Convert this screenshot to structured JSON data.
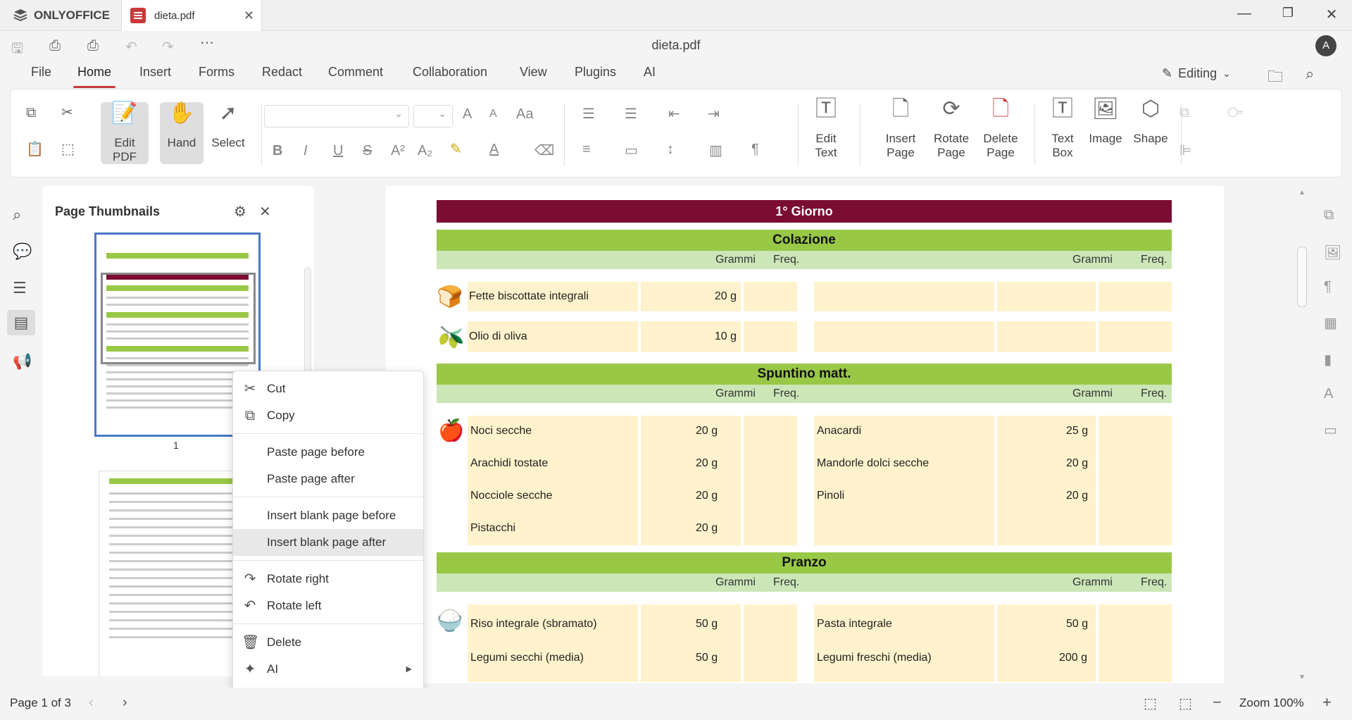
{
  "app": {
    "name": "ONLYOFFICE",
    "tab_label": "dieta.pdf",
    "doc_title": "dieta.pdf",
    "avatar_initial": "A"
  },
  "menu": {
    "tabs": [
      "File",
      "Home",
      "Insert",
      "Forms",
      "Redact",
      "Comment",
      "Collaboration",
      "View",
      "Plugins",
      "AI"
    ],
    "active": "Home",
    "mode_label": "Editing"
  },
  "toolbar": {
    "edit_pdf": [
      "Edit",
      "PDF"
    ],
    "hand": "Hand",
    "select": "Select",
    "edit_text": [
      "Edit",
      "Text"
    ],
    "insert_page": [
      "Insert",
      "Page"
    ],
    "rotate_page": [
      "Rotate",
      "Page"
    ],
    "delete_page": [
      "Delete",
      "Page"
    ],
    "text_box": [
      "Text",
      "Box"
    ],
    "image": "Image",
    "shape": "Shape"
  },
  "thumbnails": {
    "title": "Page Thumbnails",
    "page1_label": "1"
  },
  "document": {
    "day_title": "1° Giorno",
    "col_grams": "Grammi",
    "col_freq": "Freq.",
    "meals": [
      {
        "name": "Colazione",
        "rows": [
          {
            "left_food": "Fette biscottate integrali",
            "left_g": "20 g",
            "right_food": "",
            "right_g": ""
          },
          {
            "left_food": "Olio di oliva",
            "left_g": "10 g",
            "right_food": "",
            "right_g": ""
          }
        ]
      },
      {
        "name": "Spuntino matt.",
        "rows": [
          {
            "left_food": "Noci secche",
            "left_g": "20 g",
            "right_food": "Anacardi",
            "right_g": "25 g"
          },
          {
            "left_food": "Arachidi tostate",
            "left_g": "20 g",
            "right_food": "Mandorle dolci secche",
            "right_g": "20 g"
          },
          {
            "left_food": "Nocciole secche",
            "left_g": "20 g",
            "right_food": "Pinoli",
            "right_g": "20 g"
          },
          {
            "left_food": "Pistacchi",
            "left_g": "20 g",
            "right_food": "",
            "right_g": ""
          }
        ]
      },
      {
        "name": "Pranzo",
        "rows": [
          {
            "left_food": "Riso integrale (sbramato)",
            "left_g": "50 g",
            "right_food": "Pasta integrale",
            "right_g": "50 g"
          },
          {
            "left_food": "Legumi secchi (media)",
            "left_g": "50 g",
            "right_food": "Legumi freschi (media)",
            "right_g": "200 g"
          }
        ]
      }
    ]
  },
  "context_menu": {
    "cut": "Cut",
    "copy": "Copy",
    "paste_before": "Paste page before",
    "paste_after": "Paste page after",
    "insert_blank_before": "Insert blank page before",
    "insert_blank_after": "Insert blank page after",
    "rotate_right": "Rotate right",
    "rotate_left": "Rotate left",
    "delete": "Delete",
    "ai": "AI"
  },
  "status": {
    "page_indicator": "Page 1 of 3",
    "zoom": "Zoom 100%"
  },
  "colors": {
    "accent": "#c8393b",
    "day_header": "#7b0d33",
    "meal_header": "#99c847",
    "sub_header": "#cce6b8",
    "cell_bg": "#fff2cc"
  }
}
